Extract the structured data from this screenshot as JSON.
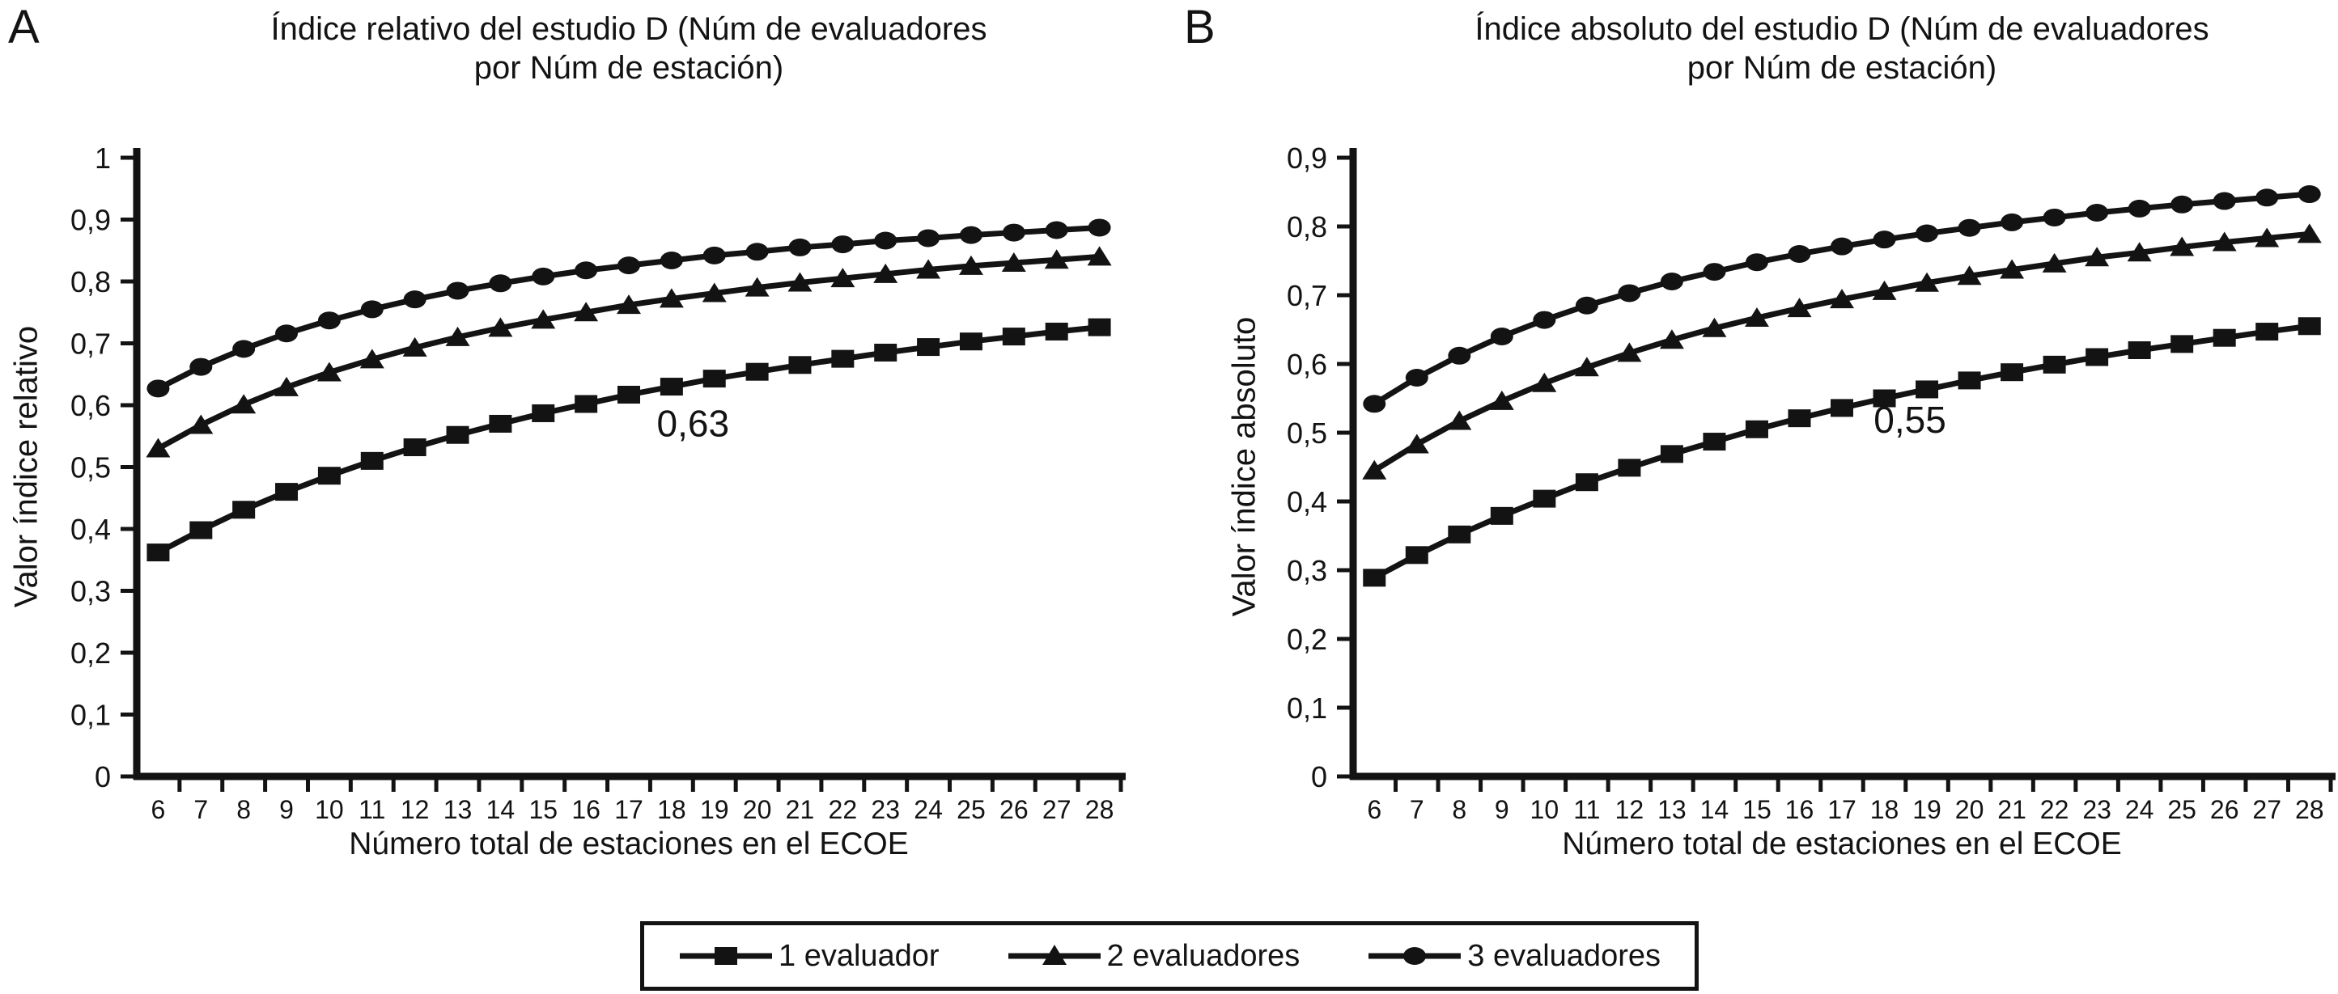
{
  "figure": {
    "background": "#ffffff",
    "ink_color": "#131313"
  },
  "legend": {
    "items": [
      {
        "label": "1 evaluador",
        "marker": "square"
      },
      {
        "label": "2 evaluadores",
        "marker": "triangle"
      },
      {
        "label": "3 evaluadores",
        "marker": "circle"
      }
    ]
  },
  "chart_data": [
    {
      "type": "line",
      "panel_label": "A",
      "title": "Índice relativo del estudio D (Núm de evaluadores por Núm de estación)",
      "title_lines": [
        "Índice relativo del estudio D (Núm de evaluadores",
        "por Núm de estación)"
      ],
      "xlabel": "Número total de estaciones en el ECOE",
      "ylabel": "Valor índice relativo",
      "x": [
        6,
        7,
        8,
        9,
        10,
        11,
        12,
        13,
        14,
        15,
        16,
        17,
        18,
        19,
        20,
        21,
        22,
        23,
        24,
        25,
        26,
        27,
        28
      ],
      "ylim": [
        0,
        1
      ],
      "ytick_step": 0.1,
      "ytick_labels": [
        "0",
        "0,1",
        "0,2",
        "0,3",
        "0,4",
        "0,5",
        "0,6",
        "0,7",
        "0,8",
        "0,9",
        "1"
      ],
      "grid": false,
      "series": [
        {
          "name": "1 evaluador",
          "marker": "square",
          "values": [
            0.362,
            0.398,
            0.431,
            0.46,
            0.486,
            0.51,
            0.532,
            0.552,
            0.57,
            0.587,
            0.602,
            0.617,
            0.63,
            0.643,
            0.654,
            0.665,
            0.675,
            0.685,
            0.694,
            0.703,
            0.711,
            0.719,
            0.726
          ]
        },
        {
          "name": "2 evaluadores",
          "marker": "triangle",
          "values": [
            0.53,
            0.568,
            0.601,
            0.629,
            0.653,
            0.674,
            0.693,
            0.71,
            0.725,
            0.738,
            0.75,
            0.762,
            0.772,
            0.781,
            0.79,
            0.798,
            0.805,
            0.812,
            0.819,
            0.825,
            0.83,
            0.835,
            0.84
          ]
        },
        {
          "name": "3 evaluadores",
          "marker": "circle",
          "values": [
            0.627,
            0.662,
            0.691,
            0.716,
            0.737,
            0.755,
            0.771,
            0.785,
            0.797,
            0.808,
            0.818,
            0.826,
            0.834,
            0.842,
            0.848,
            0.855,
            0.86,
            0.866,
            0.87,
            0.875,
            0.879,
            0.883,
            0.887
          ]
        }
      ],
      "annotation": {
        "text": "0,63",
        "x": 18.5,
        "y": 0.55
      }
    },
    {
      "type": "line",
      "panel_label": "B",
      "title": "Índice absoluto del estudio D (Núm de evaluadores por Núm de estación)",
      "title_lines": [
        "Índice absoluto del estudio D (Núm de evaluadores",
        "por Núm de estación)"
      ],
      "xlabel": "Número total de estaciones en el ECOE",
      "ylabel": "Valor índice absoluto",
      "x": [
        6,
        7,
        8,
        9,
        10,
        11,
        12,
        13,
        14,
        15,
        16,
        17,
        18,
        19,
        20,
        21,
        22,
        23,
        24,
        25,
        26,
        27,
        28
      ],
      "ylim": [
        0,
        0.9
      ],
      "ytick_step": 0.1,
      "ytick_labels": [
        "0",
        "0,1",
        "0,2",
        "0,3",
        "0,4",
        "0,5",
        "0,6",
        "0,7",
        "0,8",
        "0,9"
      ],
      "grid": false,
      "series": [
        {
          "name": "1 evaluador",
          "marker": "square",
          "values": [
            0.289,
            0.322,
            0.352,
            0.379,
            0.404,
            0.428,
            0.449,
            0.469,
            0.487,
            0.505,
            0.521,
            0.536,
            0.55,
            0.563,
            0.576,
            0.588,
            0.599,
            0.61,
            0.62,
            0.629,
            0.638,
            0.647,
            0.655
          ]
        },
        {
          "name": "2 evaluadores",
          "marker": "triangle",
          "values": [
            0.445,
            0.483,
            0.517,
            0.546,
            0.572,
            0.595,
            0.616,
            0.635,
            0.652,
            0.667,
            0.681,
            0.694,
            0.706,
            0.718,
            0.728,
            0.737,
            0.746,
            0.755,
            0.762,
            0.77,
            0.777,
            0.783,
            0.789
          ]
        },
        {
          "name": "3 evaluadores",
          "marker": "circle",
          "values": [
            0.542,
            0.58,
            0.612,
            0.64,
            0.664,
            0.685,
            0.703,
            0.72,
            0.734,
            0.748,
            0.76,
            0.771,
            0.781,
            0.79,
            0.798,
            0.806,
            0.813,
            0.82,
            0.826,
            0.832,
            0.837,
            0.842,
            0.847
          ]
        }
      ],
      "annotation": {
        "text": "0,55",
        "x": 18.6,
        "y": 0.5
      }
    }
  ]
}
